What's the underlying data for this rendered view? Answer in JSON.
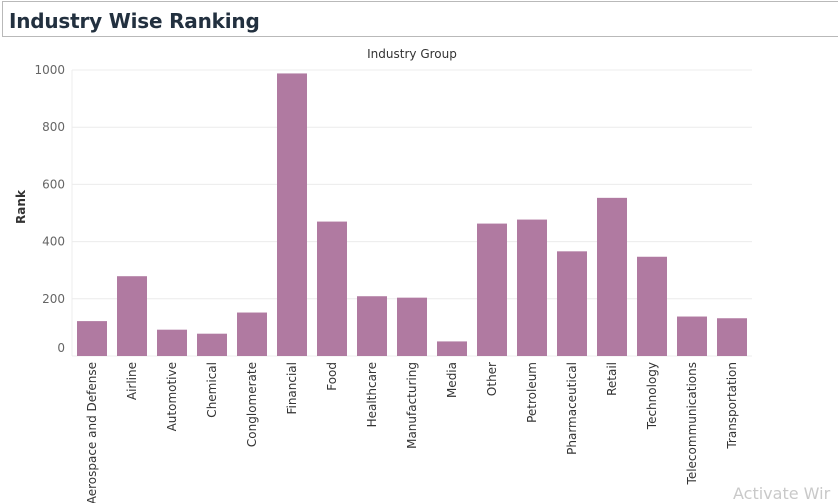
{
  "page": {
    "title": "Industry Wise Ranking",
    "watermark": "Activate Wir"
  },
  "colors": {
    "bar": "#b07aa1",
    "grid": "#ececec",
    "axis_text": "#666666",
    "label_text": "#333333"
  },
  "chart_data": {
    "type": "bar",
    "title": "Industry Group",
    "xlabel": "",
    "ylabel": "Rank",
    "ylim": [
      0,
      1000
    ],
    "yticks": [
      0,
      200,
      400,
      600,
      800,
      1000
    ],
    "grid": true,
    "categories": [
      "Aerospace and Defense",
      "Airline",
      "Automotive",
      "Chemical",
      "Conglomerate",
      "Financial",
      "Food",
      "Healthcare",
      "Manufacturing",
      "Media",
      "Other",
      "Petroleum",
      "Pharmaceutical",
      "Retail",
      "Technology",
      "Telecommunications",
      "Transportation"
    ],
    "values": [
      122,
      279,
      92,
      78,
      152,
      988,
      470,
      209,
      204,
      51,
      463,
      477,
      366,
      553,
      347,
      138,
      132
    ]
  }
}
